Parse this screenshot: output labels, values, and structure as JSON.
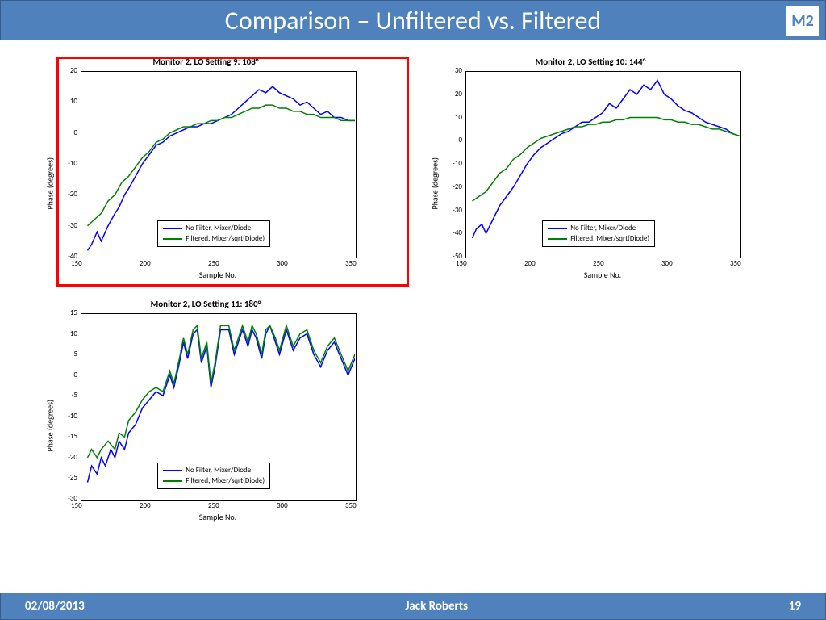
{
  "header": {
    "title": "Comparison – Unfiltered vs. Filtered",
    "badge": "M2"
  },
  "footer": {
    "date": "02/08/2013",
    "author": "Jack Roberts",
    "page": "19"
  },
  "colors": {
    "blue": "#0000ff",
    "green": "#008000",
    "header_bg": "#4f81bd",
    "highlight": "#ff0000"
  },
  "legend": {
    "s1": "No Filter, Mixer/Diode",
    "s2": "Filtered, Mixer/sqrt(Diode)"
  },
  "xlabel": "Sample No.",
  "ylabel": "Phase (degrees)",
  "charts": [
    {
      "title": "Monitor 2, LO Setting 9: 108°",
      "highlight": true,
      "xlim": [
        150,
        350
      ],
      "xticks": [
        150,
        200,
        250,
        300,
        350
      ],
      "ylim": [
        -40,
        20
      ],
      "yticks": [
        -40,
        -30,
        -20,
        -10,
        0,
        10,
        20
      ],
      "s1": [
        [
          155,
          -38
        ],
        [
          158,
          -36
        ],
        [
          162,
          -32
        ],
        [
          165,
          -35
        ],
        [
          170,
          -30
        ],
        [
          175,
          -26
        ],
        [
          178,
          -24
        ],
        [
          182,
          -20
        ],
        [
          185,
          -18
        ],
        [
          190,
          -14
        ],
        [
          195,
          -10
        ],
        [
          200,
          -7
        ],
        [
          205,
          -4
        ],
        [
          210,
          -3
        ],
        [
          215,
          -1
        ],
        [
          220,
          0
        ],
        [
          225,
          1
        ],
        [
          230,
          2
        ],
        [
          235,
          2
        ],
        [
          240,
          3
        ],
        [
          245,
          3
        ],
        [
          250,
          4
        ],
        [
          255,
          5
        ],
        [
          260,
          6
        ],
        [
          265,
          8
        ],
        [
          270,
          10
        ],
        [
          275,
          12
        ],
        [
          280,
          14
        ],
        [
          285,
          13
        ],
        [
          290,
          15
        ],
        [
          295,
          13
        ],
        [
          300,
          12
        ],
        [
          305,
          11
        ],
        [
          310,
          9
        ],
        [
          315,
          10
        ],
        [
          320,
          8
        ],
        [
          325,
          6
        ],
        [
          330,
          7
        ],
        [
          335,
          5
        ],
        [
          340,
          5
        ],
        [
          345,
          4
        ],
        [
          350,
          4
        ]
      ],
      "s2": [
        [
          155,
          -30
        ],
        [
          160,
          -28
        ],
        [
          165,
          -26
        ],
        [
          170,
          -22
        ],
        [
          175,
          -20
        ],
        [
          180,
          -16
        ],
        [
          185,
          -14
        ],
        [
          190,
          -11
        ],
        [
          195,
          -8
        ],
        [
          200,
          -6
        ],
        [
          205,
          -3
        ],
        [
          210,
          -2
        ],
        [
          215,
          0
        ],
        [
          220,
          1
        ],
        [
          225,
          2
        ],
        [
          230,
          2
        ],
        [
          235,
          3
        ],
        [
          240,
          3
        ],
        [
          245,
          4
        ],
        [
          250,
          4
        ],
        [
          255,
          5
        ],
        [
          260,
          5
        ],
        [
          265,
          6
        ],
        [
          270,
          7
        ],
        [
          275,
          8
        ],
        [
          280,
          8
        ],
        [
          285,
          9
        ],
        [
          290,
          9
        ],
        [
          295,
          8
        ],
        [
          300,
          8
        ],
        [
          305,
          7
        ],
        [
          310,
          7
        ],
        [
          315,
          6
        ],
        [
          320,
          6
        ],
        [
          325,
          5
        ],
        [
          330,
          5
        ],
        [
          335,
          5
        ],
        [
          340,
          4
        ],
        [
          345,
          4
        ],
        [
          350,
          4
        ]
      ]
    },
    {
      "title": "Monitor 2, LO Setting 10: 144°",
      "highlight": false,
      "xlim": [
        150,
        350
      ],
      "xticks": [
        150,
        200,
        250,
        300,
        350
      ],
      "ylim": [
        -50,
        30
      ],
      "yticks": [
        -50,
        -40,
        -30,
        -20,
        -10,
        0,
        10,
        20,
        30
      ],
      "s1": [
        [
          155,
          -42
        ],
        [
          158,
          -38
        ],
        [
          162,
          -36
        ],
        [
          165,
          -40
        ],
        [
          170,
          -34
        ],
        [
          175,
          -28
        ],
        [
          180,
          -24
        ],
        [
          185,
          -20
        ],
        [
          190,
          -15
        ],
        [
          195,
          -10
        ],
        [
          200,
          -6
        ],
        [
          205,
          -3
        ],
        [
          210,
          -1
        ],
        [
          215,
          1
        ],
        [
          220,
          3
        ],
        [
          225,
          4
        ],
        [
          230,
          6
        ],
        [
          235,
          8
        ],
        [
          240,
          8
        ],
        [
          245,
          10
        ],
        [
          250,
          12
        ],
        [
          255,
          16
        ],
        [
          260,
          14
        ],
        [
          265,
          18
        ],
        [
          270,
          22
        ],
        [
          275,
          20
        ],
        [
          280,
          24
        ],
        [
          285,
          22
        ],
        [
          290,
          26
        ],
        [
          295,
          20
        ],
        [
          300,
          18
        ],
        [
          305,
          15
        ],
        [
          310,
          13
        ],
        [
          315,
          12
        ],
        [
          320,
          10
        ],
        [
          325,
          8
        ],
        [
          330,
          7
        ],
        [
          335,
          6
        ],
        [
          340,
          5
        ],
        [
          345,
          3
        ],
        [
          350,
          2
        ]
      ],
      "s2": [
        [
          155,
          -26
        ],
        [
          160,
          -24
        ],
        [
          165,
          -22
        ],
        [
          170,
          -18
        ],
        [
          175,
          -14
        ],
        [
          180,
          -12
        ],
        [
          185,
          -8
        ],
        [
          190,
          -6
        ],
        [
          195,
          -3
        ],
        [
          200,
          -1
        ],
        [
          205,
          1
        ],
        [
          210,
          2
        ],
        [
          215,
          3
        ],
        [
          220,
          4
        ],
        [
          225,
          5
        ],
        [
          230,
          6
        ],
        [
          235,
          6
        ],
        [
          240,
          7
        ],
        [
          245,
          7
        ],
        [
          250,
          8
        ],
        [
          255,
          8
        ],
        [
          260,
          9
        ],
        [
          265,
          9
        ],
        [
          270,
          10
        ],
        [
          275,
          10
        ],
        [
          280,
          10
        ],
        [
          285,
          10
        ],
        [
          290,
          10
        ],
        [
          295,
          9
        ],
        [
          300,
          9
        ],
        [
          305,
          8
        ],
        [
          310,
          8
        ],
        [
          315,
          7
        ],
        [
          320,
          7
        ],
        [
          325,
          6
        ],
        [
          330,
          5
        ],
        [
          335,
          5
        ],
        [
          340,
          4
        ],
        [
          345,
          3
        ],
        [
          350,
          2
        ]
      ]
    },
    {
      "title": "Monitor 2, LO Setting 11: 180°",
      "highlight": false,
      "xlim": [
        150,
        350
      ],
      "xticks": [
        150,
        200,
        250,
        300,
        350
      ],
      "ylim": [
        -30,
        15
      ],
      "yticks": [
        -30,
        -25,
        -20,
        -15,
        -10,
        -5,
        0,
        5,
        10,
        15
      ],
      "s1": [
        [
          155,
          -26
        ],
        [
          158,
          -22
        ],
        [
          162,
          -24
        ],
        [
          165,
          -20
        ],
        [
          168,
          -22
        ],
        [
          172,
          -18
        ],
        [
          175,
          -20
        ],
        [
          178,
          -16
        ],
        [
          182,
          -18
        ],
        [
          185,
          -14
        ],
        [
          190,
          -12
        ],
        [
          195,
          -8
        ],
        [
          200,
          -6
        ],
        [
          205,
          -4
        ],
        [
          210,
          -5
        ],
        [
          215,
          0
        ],
        [
          218,
          -3
        ],
        [
          222,
          3
        ],
        [
          225,
          8
        ],
        [
          228,
          4
        ],
        [
          232,
          10
        ],
        [
          235,
          11
        ],
        [
          238,
          3
        ],
        [
          242,
          7
        ],
        [
          245,
          -3
        ],
        [
          248,
          2
        ],
        [
          252,
          11
        ],
        [
          255,
          11
        ],
        [
          258,
          11
        ],
        [
          262,
          5
        ],
        [
          265,
          8
        ],
        [
          268,
          11
        ],
        [
          272,
          7
        ],
        [
          275,
          11
        ],
        [
          278,
          9
        ],
        [
          282,
          4
        ],
        [
          285,
          10
        ],
        [
          288,
          12
        ],
        [
          292,
          8
        ],
        [
          295,
          5
        ],
        [
          300,
          11
        ],
        [
          305,
          6
        ],
        [
          310,
          9
        ],
        [
          315,
          10
        ],
        [
          320,
          5
        ],
        [
          325,
          2
        ],
        [
          330,
          6
        ],
        [
          335,
          8
        ],
        [
          340,
          4
        ],
        [
          345,
          0
        ],
        [
          350,
          4
        ]
      ],
      "s2": [
        [
          155,
          -20
        ],
        [
          158,
          -18
        ],
        [
          162,
          -20
        ],
        [
          165,
          -18
        ],
        [
          170,
          -16
        ],
        [
          175,
          -18
        ],
        [
          178,
          -14
        ],
        [
          182,
          -15
        ],
        [
          185,
          -11
        ],
        [
          190,
          -9
        ],
        [
          195,
          -6
        ],
        [
          200,
          -4
        ],
        [
          205,
          -3
        ],
        [
          210,
          -4
        ],
        [
          215,
          1
        ],
        [
          218,
          -2
        ],
        [
          222,
          4
        ],
        [
          225,
          9
        ],
        [
          228,
          5
        ],
        [
          232,
          11
        ],
        [
          235,
          12
        ],
        [
          238,
          4
        ],
        [
          242,
          8
        ],
        [
          245,
          -2
        ],
        [
          248,
          3
        ],
        [
          252,
          12
        ],
        [
          255,
          12
        ],
        [
          258,
          12
        ],
        [
          262,
          6
        ],
        [
          265,
          9
        ],
        [
          268,
          12
        ],
        [
          272,
          8
        ],
        [
          275,
          12
        ],
        [
          278,
          10
        ],
        [
          282,
          5
        ],
        [
          285,
          11
        ],
        [
          288,
          12
        ],
        [
          292,
          9
        ],
        [
          295,
          6
        ],
        [
          300,
          12
        ],
        [
          305,
          7
        ],
        [
          310,
          10
        ],
        [
          315,
          11
        ],
        [
          320,
          6
        ],
        [
          325,
          3
        ],
        [
          330,
          7
        ],
        [
          335,
          9
        ],
        [
          340,
          5
        ],
        [
          345,
          1
        ],
        [
          350,
          5
        ]
      ]
    }
  ]
}
